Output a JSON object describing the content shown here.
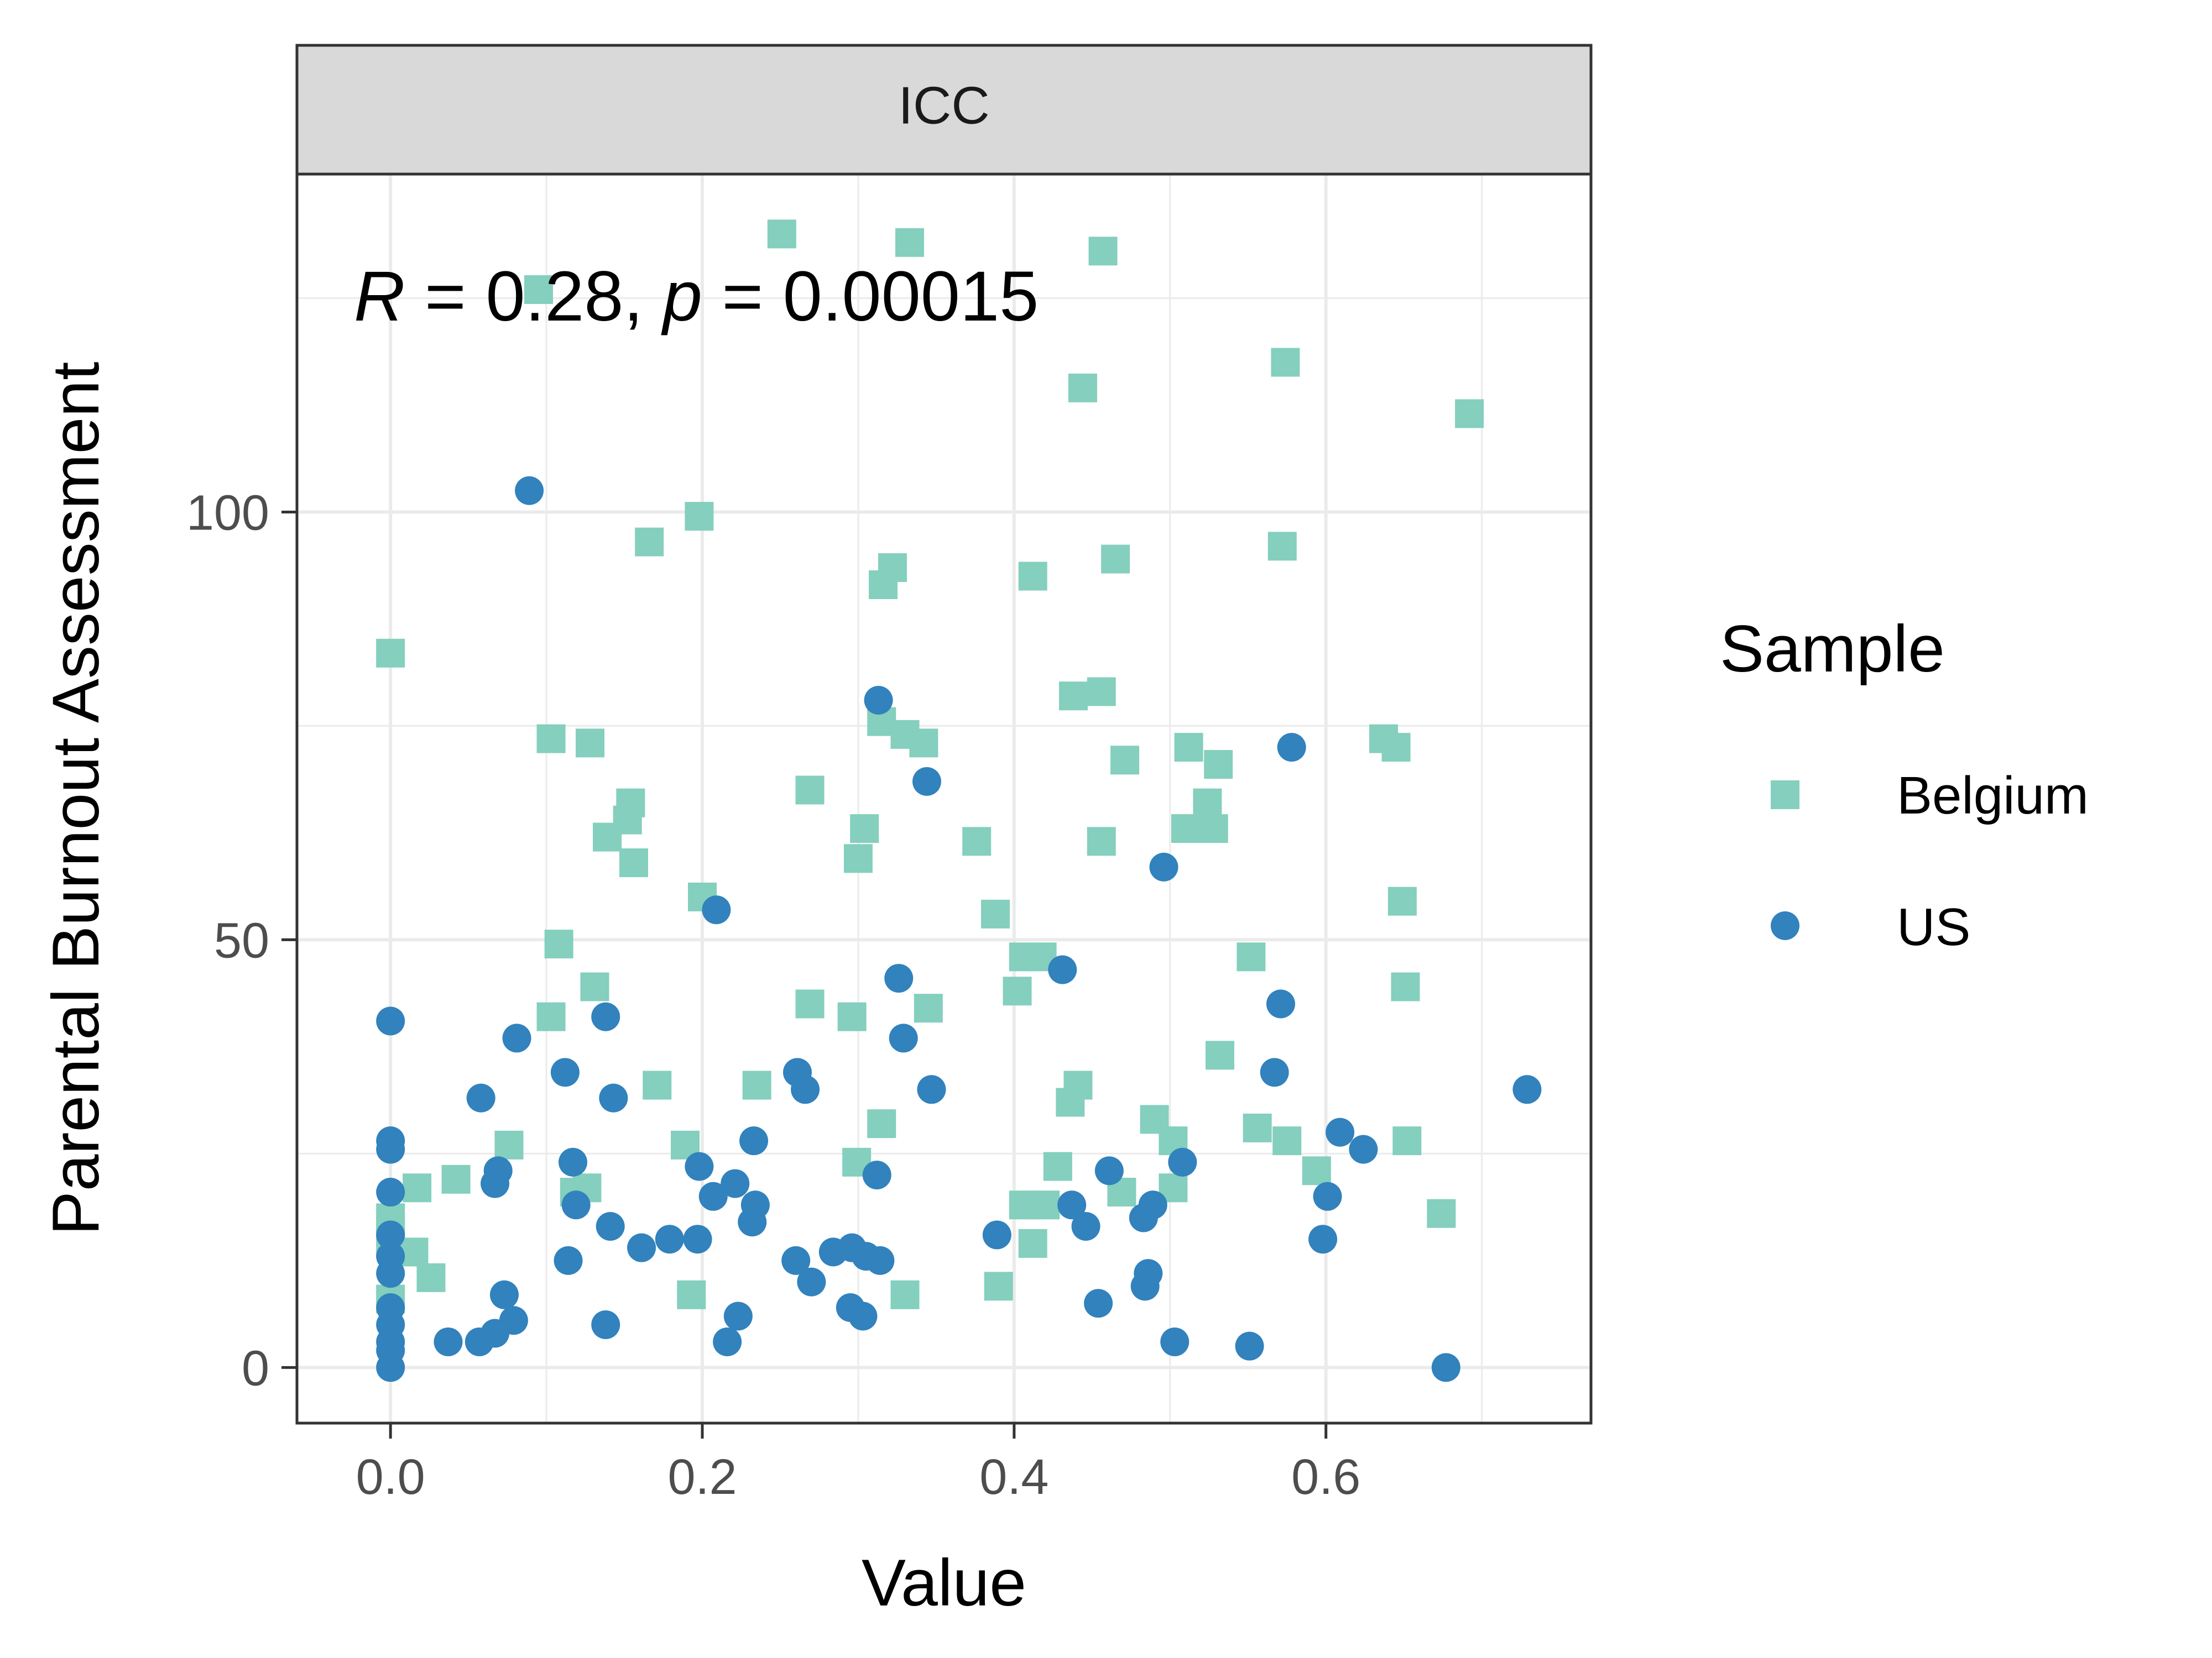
{
  "chart_data": {
    "type": "scatter",
    "panel_title": "ICC",
    "xlabel": "Value",
    "ylabel": "Parental Burnout Assessment",
    "xlim": [
      -0.06,
      0.77
    ],
    "ylim": [
      -6.5,
      139.5
    ],
    "x_ticks": [
      0.0,
      0.2,
      0.4,
      0.6
    ],
    "x_tick_labels": [
      "0.0",
      "0.2",
      "0.4",
      "0.6"
    ],
    "y_ticks": [
      0,
      50,
      100
    ],
    "y_tick_labels": [
      "0",
      "50",
      "100"
    ],
    "grid": true,
    "legend": {
      "title": "Sample",
      "position": "right"
    },
    "annotation": {
      "r_symbol": "R",
      "r_text": " = 0.28, ",
      "p_symbol": "p",
      "p_text": " = 0.00015"
    },
    "series": [
      {
        "name": "Belgium",
        "marker": "square",
        "color": "#84cfbd",
        "points": [
          [
            0.251,
            132.5
          ],
          [
            0.333,
            131.5
          ],
          [
            0.457,
            130.5
          ],
          [
            0.095,
            126
          ],
          [
            0.574,
            117.5
          ],
          [
            0.444,
            114.5
          ],
          [
            0.692,
            111.5
          ],
          [
            0.198,
            99.5
          ],
          [
            0.166,
            96.5
          ],
          [
            0.572,
            96
          ],
          [
            0.465,
            94.5
          ],
          [
            0.322,
            93.5
          ],
          [
            0.316,
            91.5
          ],
          [
            0.412,
            92.5
          ],
          [
            0.0,
            83.5
          ],
          [
            0.438,
            78.5
          ],
          [
            0.456,
            79
          ],
          [
            0.315,
            75.5
          ],
          [
            0.33,
            74
          ],
          [
            0.342,
            73
          ],
          [
            0.103,
            73.5
          ],
          [
            0.128,
            73
          ],
          [
            0.637,
            73.5
          ],
          [
            0.645,
            72.5
          ],
          [
            0.512,
            72.5
          ],
          [
            0.471,
            71
          ],
          [
            0.531,
            70.5
          ],
          [
            0.269,
            67.5
          ],
          [
            0.154,
            66
          ],
          [
            0.524,
            66
          ],
          [
            0.152,
            64
          ],
          [
            0.139,
            62
          ],
          [
            0.304,
            63
          ],
          [
            0.51,
            63
          ],
          [
            0.528,
            63
          ],
          [
            0.376,
            61.5
          ],
          [
            0.456,
            61.5
          ],
          [
            0.3,
            59.5
          ],
          [
            0.156,
            59
          ],
          [
            0.2,
            55
          ],
          [
            0.649,
            54.5
          ],
          [
            0.388,
            53
          ],
          [
            0.108,
            49.5
          ],
          [
            0.406,
            48
          ],
          [
            0.418,
            48
          ],
          [
            0.552,
            48
          ],
          [
            0.131,
            44.5
          ],
          [
            0.402,
            44
          ],
          [
            0.651,
            44.5
          ],
          [
            0.269,
            42.5
          ],
          [
            0.345,
            42
          ],
          [
            0.103,
            41
          ],
          [
            0.296,
            41
          ],
          [
            0.532,
            36.5
          ],
          [
            0.441,
            33
          ],
          [
            0.171,
            33
          ],
          [
            0.235,
            33
          ],
          [
            0.436,
            31
          ],
          [
            0.315,
            28.5
          ],
          [
            0.49,
            29
          ],
          [
            0.556,
            28
          ],
          [
            0.076,
            26
          ],
          [
            0.189,
            26
          ],
          [
            0.502,
            26.5
          ],
          [
            0.575,
            26.5
          ],
          [
            0.652,
            26.5
          ],
          [
            0.017,
            21
          ],
          [
            0.042,
            22
          ],
          [
            0.118,
            20.5
          ],
          [
            0.126,
            21
          ],
          [
            0.299,
            24
          ],
          [
            0.428,
            23.5
          ],
          [
            0.594,
            23
          ],
          [
            0.469,
            20.5
          ],
          [
            0.502,
            21
          ],
          [
            0.406,
            19
          ],
          [
            0.42,
            19
          ],
          [
            0.674,
            18
          ],
          [
            0.0,
            17.5
          ],
          [
            0.0,
            16
          ],
          [
            0.0,
            14.5
          ],
          [
            0.015,
            13.5
          ],
          [
            0.026,
            10.5
          ],
          [
            0.412,
            14.5
          ],
          [
            0.193,
            8.5
          ],
          [
            0.33,
            8.5
          ],
          [
            0.39,
            9.5
          ],
          [
            0.0,
            8
          ]
        ]
      },
      {
        "name": "US",
        "marker": "circle",
        "color": "#3182bd",
        "points": [
          [
            0.089,
            102.5
          ],
          [
            0.313,
            78
          ],
          [
            0.578,
            72.5
          ],
          [
            0.344,
            68.5
          ],
          [
            0.496,
            58.5
          ],
          [
            0.209,
            53.5
          ],
          [
            0.431,
            46.5
          ],
          [
            0.326,
            45.5
          ],
          [
            0.571,
            42.5
          ],
          [
            0.0,
            40.5
          ],
          [
            0.138,
            41
          ],
          [
            0.081,
            38.5
          ],
          [
            0.329,
            38.5
          ],
          [
            0.112,
            34.5
          ],
          [
            0.261,
            34.5
          ],
          [
            0.567,
            34.5
          ],
          [
            0.266,
            32.5
          ],
          [
            0.347,
            32.5
          ],
          [
            0.729,
            32.5
          ],
          [
            0.058,
            31.5
          ],
          [
            0.143,
            31.5
          ],
          [
            0.609,
            27.5
          ],
          [
            0.624,
            25.5
          ],
          [
            0.0,
            26.5
          ],
          [
            0.0,
            25.5
          ],
          [
            0.233,
            26.5
          ],
          [
            0.117,
            24
          ],
          [
            0.069,
            23
          ],
          [
            0.198,
            23.5
          ],
          [
            0.312,
            22.5
          ],
          [
            0.461,
            23
          ],
          [
            0.508,
            24
          ],
          [
            0.067,
            21.5
          ],
          [
            0.221,
            21.5
          ],
          [
            0.0,
            20.5
          ],
          [
            0.207,
            20
          ],
          [
            0.234,
            19
          ],
          [
            0.119,
            19
          ],
          [
            0.437,
            19
          ],
          [
            0.489,
            19
          ],
          [
            0.601,
            20
          ],
          [
            0.232,
            17
          ],
          [
            0.141,
            16.5
          ],
          [
            0.446,
            16.5
          ],
          [
            0.483,
            17.5
          ],
          [
            0.0,
            15.5
          ],
          [
            0.161,
            14
          ],
          [
            0.179,
            15
          ],
          [
            0.197,
            15
          ],
          [
            0.389,
            15.5
          ],
          [
            0.598,
            15
          ],
          [
            0.0,
            13
          ],
          [
            0.114,
            12.5
          ],
          [
            0.26,
            12.5
          ],
          [
            0.284,
            13.5
          ],
          [
            0.296,
            14
          ],
          [
            0.305,
            13
          ],
          [
            0.314,
            12.5
          ],
          [
            0.0,
            11
          ],
          [
            0.27,
            10
          ],
          [
            0.486,
            11
          ],
          [
            0.484,
            9.5
          ],
          [
            0.073,
            8.5
          ],
          [
            0.295,
            7
          ],
          [
            0.303,
            6
          ],
          [
            0.454,
            7.5
          ],
          [
            0.0,
            7
          ],
          [
            0.0,
            5
          ],
          [
            0.079,
            5.5
          ],
          [
            0.138,
            5
          ],
          [
            0.223,
            6
          ],
          [
            0.067,
            4
          ],
          [
            0.037,
            3
          ],
          [
            0.057,
            3
          ],
          [
            0.216,
            3
          ],
          [
            0.503,
            3
          ],
          [
            0.551,
            2.5
          ],
          [
            0.0,
            3
          ],
          [
            0.0,
            2
          ],
          [
            0.0,
            0
          ],
          [
            0.677,
            0
          ]
        ]
      }
    ]
  }
}
